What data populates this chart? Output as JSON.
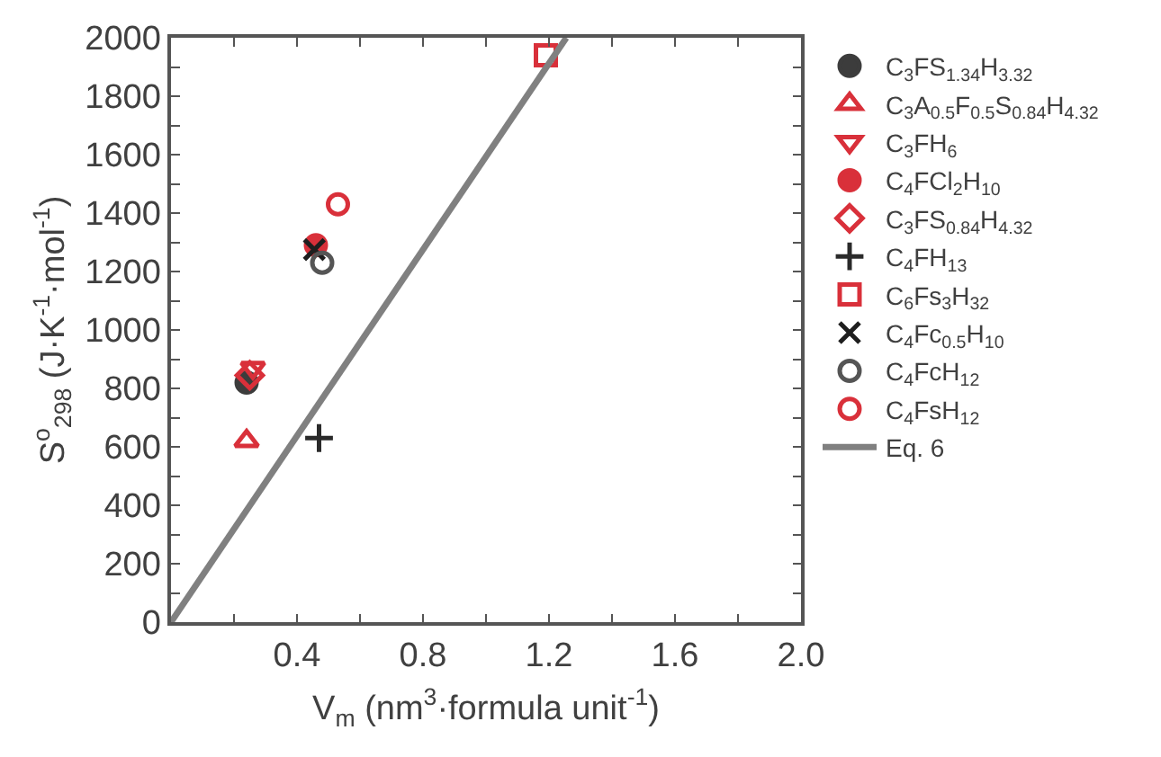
{
  "chart_data": {
    "type": "scatter",
    "xlabel": "V$_{m}$ (nm$^{3}$·formula unit$^{-1}$)",
    "ylabel": "S$^{o}$$_{298}$ (J·K$^{-1}$·mol$^{-1}$)",
    "xlim": [
      0,
      2.0
    ],
    "xticks": [
      {
        "value": 0.2,
        "label": null
      },
      0.4,
      {
        "value": 0.6,
        "label": null
      },
      0.8,
      {
        "value": 1.0,
        "label": null
      },
      1.2,
      {
        "value": 1.4,
        "label": null
      },
      1.6,
      {
        "value": 1.8,
        "label": null
      },
      {
        "value": 2.0,
        "label": "2.0"
      }
    ],
    "ylim": [
      0,
      2000
    ],
    "yticks": [
      0,
      {
        "value": 100,
        "label": null
      },
      200,
      {
        "value": 300,
        "label": null
      },
      400,
      {
        "value": 500,
        "label": null
      },
      600,
      {
        "value": 700,
        "label": null
      },
      800,
      {
        "value": 900,
        "label": null
      },
      1000,
      {
        "value": 1100,
        "label": null
      },
      1200,
      {
        "value": 1300,
        "label": null
      },
      1400,
      {
        "value": 1500,
        "label": null
      },
      1600,
      {
        "value": 1700,
        "label": null
      },
      1800,
      {
        "value": 1900,
        "label": null
      },
      2000
    ],
    "legend": "top right",
    "series": [
      {
        "name": "C$_{3}$FS$_{1.34}$H$_{3.32}$",
        "color": "#3c3c3c",
        "marker": "circle",
        "x": [
          0.24
        ],
        "values": [
          820
        ]
      },
      {
        "name": "C$_{3}$A$_{0.5}$F$_{0.5}$S$_{0.84}$H$_{4.32}$",
        "color": "#d9303a",
        "marker": "triangle-up-open",
        "x": [
          0.24
        ],
        "values": [
          620
        ]
      },
      {
        "name": "C$_{3}$FH$_{6}$",
        "color": "#d9303a",
        "marker": "triangle-down-open",
        "x": [
          0.26
        ],
        "values": [
          870
        ]
      },
      {
        "name": "C$_{4}$FCl$_{2}$H$_{10}$",
        "color": "#d9303a",
        "marker": "circle",
        "x": [
          0.46
        ],
        "values": [
          1290
        ]
      },
      {
        "name": "C$_{3}$FS$_{0.84}$H$_{4.32}$",
        "color": "#d9303a",
        "marker": "diamond-open",
        "x": [
          0.25
        ],
        "values": [
          845
        ]
      },
      {
        "name": "C$_{4}$FH$_{13}$",
        "color": "#2a2a2a",
        "marker": "cross",
        "x": [
          0.47
        ],
        "values": [
          630
        ]
      },
      {
        "name": "C$_{6}$Fs$_{3}$H$_{32}$",
        "color": "#d9303a",
        "marker": "square-open",
        "x": [
          1.19
        ],
        "values": [
          1940
        ]
      },
      {
        "name": "C$_{4}$Fc$_{0.5}$H$_{10}$",
        "color": "#1e1e1e",
        "marker": "x",
        "x": [
          0.455
        ],
        "values": [
          1275
        ]
      },
      {
        "name": "C$_{4}$FcH$_{12}$",
        "color": "#555555",
        "marker": "circle-open",
        "x": [
          0.48
        ],
        "values": [
          1230
        ]
      },
      {
        "name": "C$_{4}$FsH$_{12}$",
        "color": "#d9303a",
        "marker": "circle-open",
        "x": [
          0.53
        ],
        "values": [
          1430
        ]
      },
      {
        "name": "Eq. 6",
        "type": "line",
        "color": "#808080",
        "marker": "none",
        "line_style": "solid",
        "x": [
          0,
          1.255
        ],
        "values": [
          0,
          2000
        ]
      }
    ]
  }
}
